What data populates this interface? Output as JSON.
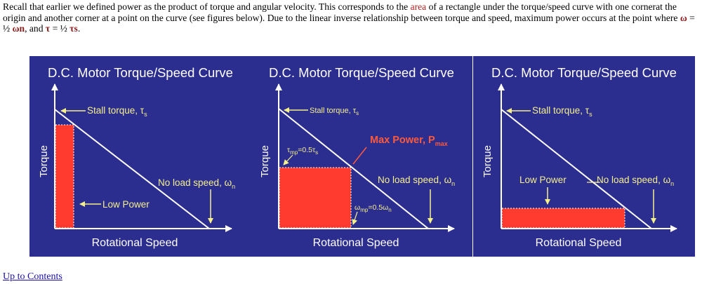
{
  "intro": {
    "p1": "Recall that earlier we defined power as the product of torque and angular velocity. This corresponds to the ",
    "area_word": "area",
    "p2": " of a rectangle under the torque/speed curve with one cornerat the origin and another corner at a point on the curve (see figures below). Due to the linear inverse relationship between torque and speed, maximum power occurs at the point where ",
    "omega": "ω",
    "eq1": " = ½ ",
    "omega_n": "ω",
    "n_sub": "n",
    "comma_and": ", and ",
    "tau": "τ",
    "eq2": " = ½ ",
    "tau_s": "τ",
    "s_sub": "s",
    "period": "."
  },
  "panels": [
    {
      "title": "D.C. Motor Torque/Speed Curve",
      "ylabel": "Torque",
      "xlabel": "Rotational Speed",
      "stall_label": "Stall torque, τ",
      "stall_sub": "s",
      "noload_label": "No load speed, ω",
      "noload_sub": "n",
      "power_label": "Low Power"
    },
    {
      "title": "D.C. Motor Torque/Speed Curve",
      "ylabel": "Torque",
      "xlabel": "Rotational Speed",
      "stall_label": "Stall torque, τ",
      "stall_sub": "s",
      "noload_label": "No load speed, ω",
      "noload_sub": "n",
      "maxpower_label": "Max Power, P",
      "maxpower_sub": "max",
      "tau_mp_label": "τ",
      "tau_mp_sub": "mp",
      "tau_mp_eq": "=0.5τ",
      "tau_mp_eq_sub": "s",
      "omega_mp_label": "ω",
      "omega_mp_sub": "mp",
      "omega_mp_eq": "=0.5ω",
      "omega_mp_eq_sub": "n"
    },
    {
      "title": "D.C. Motor Torque/Speed Curve",
      "ylabel": "Torque",
      "xlabel": "Rotational Speed",
      "stall_label": "Stall torque, τ",
      "stall_sub": "s",
      "noload_label": "No load speed, ω",
      "noload_sub": "n",
      "power_label": "Low Power"
    }
  ],
  "colors": {
    "panel_bg": "#2b2d8f",
    "title_text": "#ffffff",
    "label_text": "#f5f08a",
    "max_power_text": "#ff5a3c",
    "rect_fill": "#ff3b30",
    "line": "#ffffff"
  },
  "footer": {
    "link_text": "Up to Contents"
  }
}
